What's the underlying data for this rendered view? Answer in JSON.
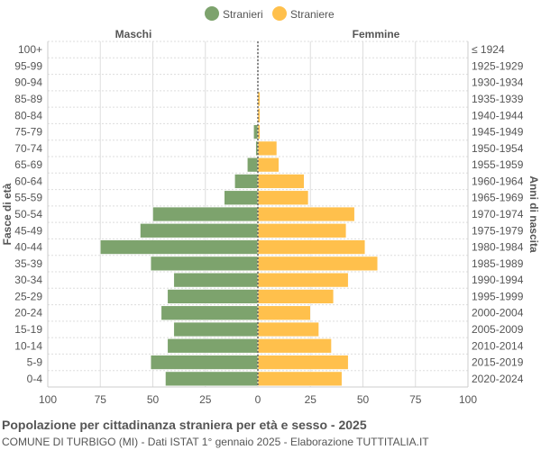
{
  "chart_data": {
    "type": "bar",
    "orientation": "horizontal-pyramid",
    "legend": {
      "placement": "top",
      "entries": [
        "Stranieri",
        "Straniere"
      ]
    },
    "colors": {
      "Stranieri": "#7da36d",
      "Straniere": "#ffc04c"
    },
    "left_label": "Maschi",
    "right_label": "Femmine",
    "ylabel_left": "Fasce di età",
    "ylabel_right": "Anni di nascita",
    "categories": [
      "100+",
      "95-99",
      "90-94",
      "85-89",
      "80-84",
      "75-79",
      "70-74",
      "65-69",
      "60-64",
      "55-59",
      "50-54",
      "45-49",
      "40-44",
      "35-39",
      "30-34",
      "25-29",
      "20-24",
      "15-19",
      "10-14",
      "5-9",
      "0-4"
    ],
    "birth_years": [
      "≤ 1924",
      "1925-1929",
      "1930-1934",
      "1935-1939",
      "1940-1944",
      "1945-1949",
      "1950-1954",
      "1955-1959",
      "1960-1964",
      "1965-1969",
      "1970-1974",
      "1975-1979",
      "1980-1984",
      "1985-1989",
      "1990-1994",
      "1995-1999",
      "2000-2004",
      "2005-2009",
      "2010-2014",
      "2015-2019",
      "2020-2024"
    ],
    "series": [
      {
        "name": "Stranieri",
        "values": [
          0,
          0,
          0,
          0,
          0,
          2,
          1,
          5,
          11,
          16,
          50,
          56,
          75,
          51,
          40,
          43,
          46,
          40,
          43,
          51,
          44
        ]
      },
      {
        "name": "Straniere",
        "values": [
          0,
          0,
          0,
          1,
          1,
          1,
          9,
          10,
          22,
          24,
          46,
          42,
          51,
          57,
          43,
          36,
          25,
          29,
          35,
          43,
          40
        ]
      }
    ],
    "xlim": [
      -100,
      100
    ],
    "xticks": [
      "100",
      "75",
      "50",
      "25",
      "0",
      "25",
      "50",
      "75",
      "100"
    ],
    "grid": true
  },
  "footer": {
    "title": "Popolazione per cittadinanza straniera per età e sesso - 2025",
    "subtitle": "COMUNE DI TURBIGO (MI) - Dati ISTAT 1° gennaio 2025 - Elaborazione TUTTITALIA.IT"
  }
}
